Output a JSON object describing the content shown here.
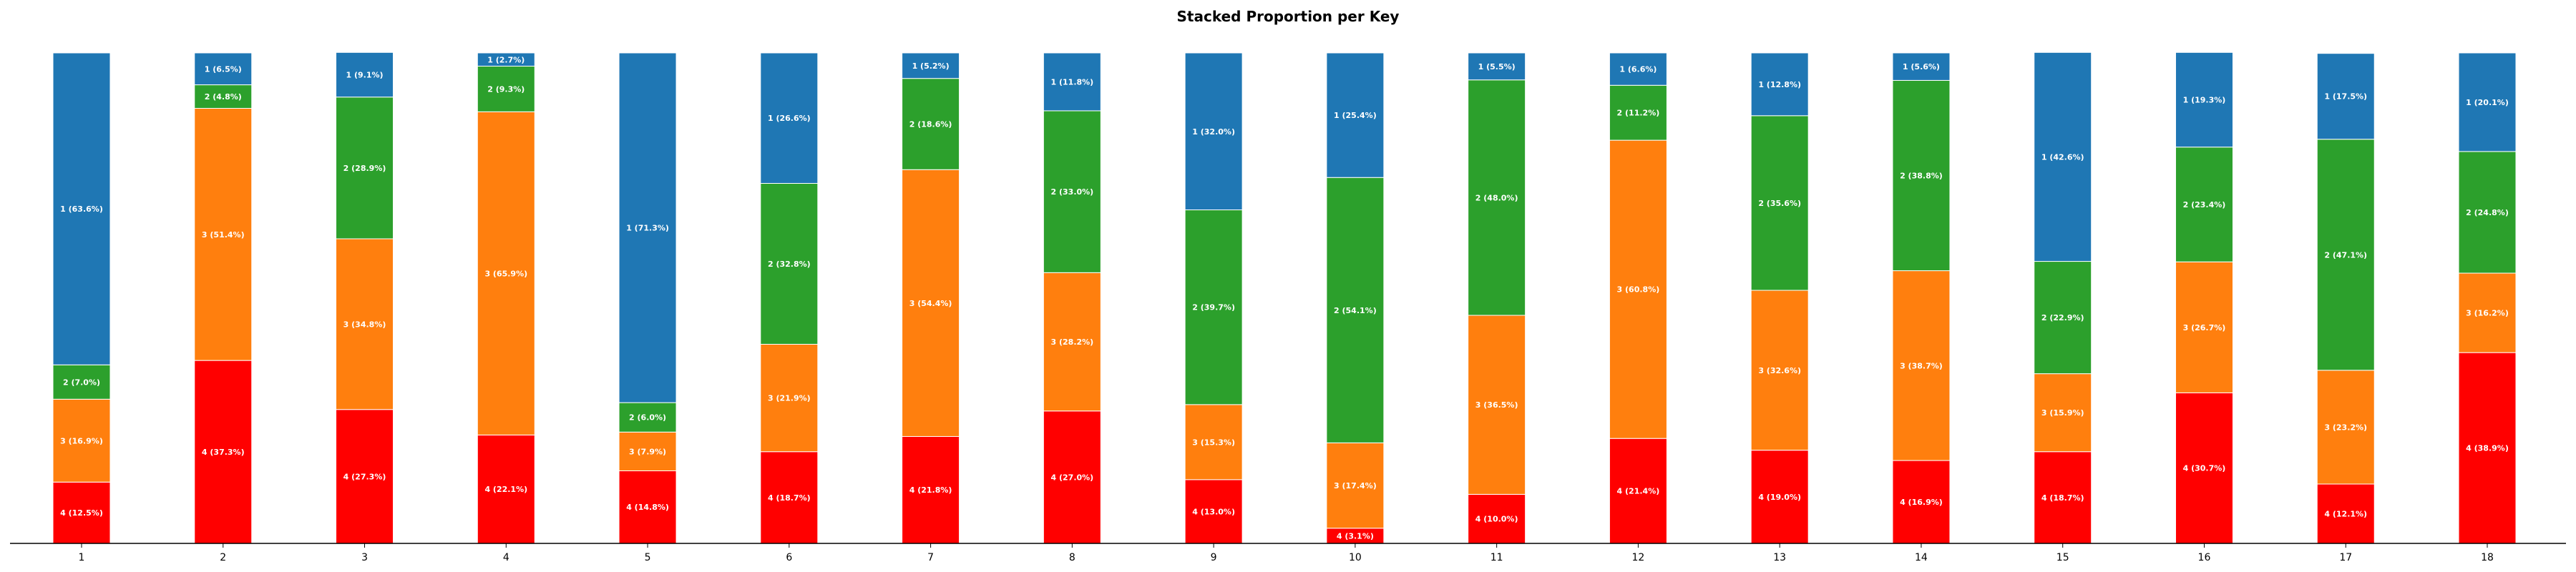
{
  "chart_data": {
    "type": "bar",
    "stacked": true,
    "normalized": true,
    "title": "Stacked Proportion per Key",
    "xlabel": "",
    "ylabel": "",
    "ylim": [
      0,
      100
    ],
    "grid": false,
    "legend": "none",
    "categories": [
      "1",
      "2",
      "3",
      "4",
      "5",
      "6",
      "7",
      "8",
      "9",
      "10",
      "11",
      "12",
      "13",
      "14",
      "15",
      "16",
      "17",
      "18"
    ],
    "series": [
      {
        "key": "4",
        "color": "#ff0000",
        "values": [
          12.5,
          37.3,
          27.3,
          22.1,
          14.8,
          18.7,
          21.8,
          27.0,
          13.0,
          3.1,
          10.0,
          21.4,
          19.0,
          16.9,
          18.7,
          30.7,
          12.1,
          38.9
        ]
      },
      {
        "key": "3",
        "color": "#ff7f0e",
        "values": [
          16.9,
          51.4,
          34.8,
          65.9,
          7.9,
          21.9,
          54.4,
          28.2,
          15.3,
          17.4,
          36.5,
          60.8,
          32.6,
          38.7,
          15.9,
          26.7,
          23.2,
          16.2
        ]
      },
      {
        "key": "2",
        "color": "#2ca02c",
        "values": [
          7.0,
          4.8,
          28.9,
          9.3,
          6.0,
          32.8,
          18.6,
          33.0,
          39.7,
          54.1,
          48.0,
          11.2,
          35.6,
          38.8,
          22.9,
          23.4,
          47.1,
          24.8
        ]
      },
      {
        "key": "1",
        "color": "#1f77b4",
        "values": [
          63.6,
          6.5,
          9.1,
          2.7,
          71.3,
          26.6,
          5.2,
          11.8,
          32.0,
          25.4,
          5.5,
          6.6,
          12.8,
          5.6,
          42.6,
          19.3,
          17.5,
          20.1
        ]
      }
    ]
  }
}
